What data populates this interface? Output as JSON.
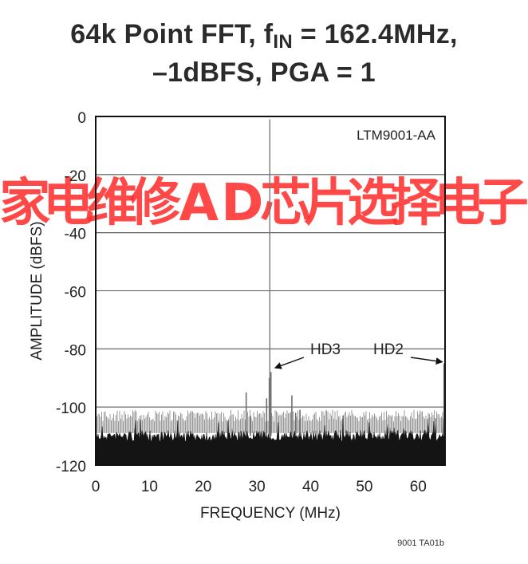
{
  "chart_data": {
    "type": "line",
    "title_parts": {
      "line1_prefix": "64k Point FFT, f",
      "line1_sub": "IN",
      "line1_suffix": " = 162.4MHz,",
      "line2": "–1dBFS, PGA = 1"
    },
    "xlabel": "FREQUENCY (MHz)",
    "ylabel": "AMPLITUDE (dBFS)",
    "xlim": [
      0,
      65
    ],
    "ylim": [
      -120,
      0
    ],
    "xticks": [
      0,
      10,
      20,
      30,
      40,
      50,
      60
    ],
    "xtick_labels": [
      "0",
      "10",
      "20",
      "30",
      "40",
      "50",
      "60"
    ],
    "yticks": [
      0,
      -20,
      -40,
      -60,
      -80,
      -100,
      -120
    ],
    "ytick_labels": [
      "0",
      "-20",
      "-40",
      "-60",
      "-80",
      "-100",
      "-120"
    ],
    "grid": true,
    "noise_floor_dbfs": [
      -118,
      -108
    ],
    "spurs": [
      {
        "x": 28.0,
        "y": -95
      },
      {
        "x": 28.8,
        "y": -103
      },
      {
        "x": 31.8,
        "y": -97
      },
      {
        "x": 32.3,
        "y": -90
      },
      {
        "x": 32.6,
        "y": -88
      },
      {
        "x": 36.5,
        "y": -96
      },
      {
        "x": 37.2,
        "y": -102
      },
      {
        "x": 38.0,
        "y": -101
      },
      {
        "x": 64.8,
        "y": -85
      }
    ],
    "fundamental": {
      "x": 32.4,
      "y": -1
    },
    "series": [
      {
        "name": "LTM9001-AA",
        "color": "#111111"
      }
    ],
    "annotations": [
      {
        "text": "HD3",
        "x_target": 32.6,
        "y_target": -87
      },
      {
        "text": "HD2",
        "x_target": 64.8,
        "y_target": -85
      }
    ]
  },
  "footer_code": "9001 TA01b",
  "watermark_text": "家电维修AD芯片选择电子"
}
